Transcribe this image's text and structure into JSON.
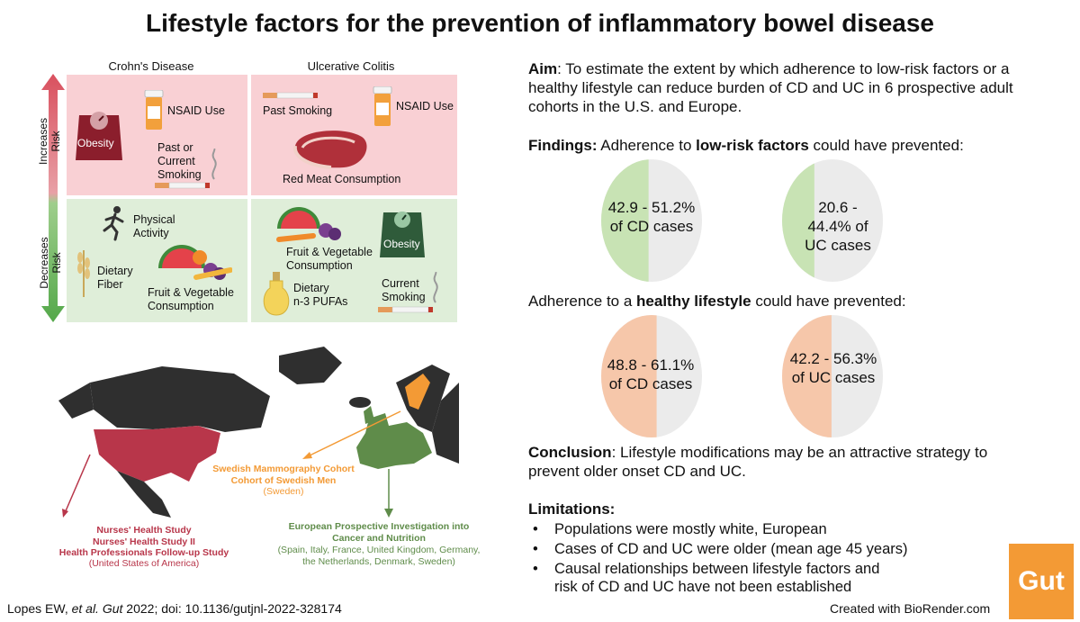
{
  "title": "Lifestyle factors for the prevention of inflammatory bowel disease",
  "matrix": {
    "col_headers": [
      "Crohn's Disease",
      "Ulcerative Colitis"
    ],
    "row_headers": [
      "Increases Risk",
      "Decreases Risk"
    ],
    "cd_increase": {
      "obesity": "Obesity",
      "nsaid": "NSAID Use",
      "smoking": "Past or\nCurrent\nSmoking"
    },
    "uc_increase": {
      "past_smoking": "Past Smoking",
      "nsaid": "NSAID Use",
      "red_meat": "Red Meat Consumption"
    },
    "cd_decrease": {
      "physical": "Physical\nActivity",
      "fiber": "Dietary\nFiber",
      "fruit": "Fruit & Vegetable\nConsumption"
    },
    "uc_decrease": {
      "fruit": "Fruit & Vegetable\nConsumption",
      "obesity": "Obesity",
      "pufa": "Dietary\nn-3 PUFAs",
      "smoking": "Current\nSmoking"
    }
  },
  "map": {
    "us_studies": "Nurses' Health Study\nNurses' Health Study II\nHealth Professionals Follow-up Study",
    "us_country": "(United States of America)",
    "swe_studies": "Swedish Mammography Cohort\nCohort of Swedish Men",
    "swe_country": "(Sweden)",
    "epic_study": "European Prospective Investigation into\nCancer and Nutrition",
    "epic_countries": "(Spain, Italy, France, United Kingdom, Germany,\nthe Netherlands, Denmark, Sweden)"
  },
  "aim": {
    "label": "Aim",
    "text": ": To estimate the extent by which adherence to low-risk factors or a healthy lifestyle can reduce burden of CD and UC in 6 prospective adult cohorts in the U.S. and Europe."
  },
  "findings": {
    "label": "Findings:",
    "pre": " Adherence to ",
    "bold": "low-risk factors",
    "post": " could have prevented:"
  },
  "healthy": {
    "pre": "Adherence to a ",
    "bold": "healthy lifestyle",
    "post": " could have prevented:"
  },
  "ovals": [
    {
      "text": "42.9 - 51.2%\nof CD cases",
      "fraction": 0.47,
      "color": "#c8e3b4"
    },
    {
      "text": "20.6 -\n44.4% of\nUC cases",
      "fraction": 0.32,
      "color": "#c8e3b4"
    },
    {
      "text": "48.8 - 61.1%\nof CD cases",
      "fraction": 0.55,
      "color": "#f6c7aa"
    },
    {
      "text": "42.2 - 56.3%\nof UC cases",
      "fraction": 0.49,
      "color": "#f6c7aa"
    }
  ],
  "conclusion": {
    "label": "Conclusion",
    "text": ": Lifestyle modifications may be an attractive strategy to prevent older onset CD and UC."
  },
  "limitations": {
    "label": "Limitations:",
    "items": [
      "Populations were mostly white, European",
      "Cases of CD and UC were older (mean age 45 years)",
      "Causal relationships between lifestyle factors and\nrisk of CD and UC have not been established"
    ]
  },
  "citation": {
    "pre": "Lopes EW, ",
    "etal": "et al. Gut",
    "post": " 2022; doi: 10.1136/gutjnl-2022-328174"
  },
  "created": "Created with BioRender.com",
  "logo": "Gut",
  "colors": {
    "increase": "#f9d0d4",
    "decrease": "#dfeed9",
    "accent": "#b8364a",
    "green": "#5f8c4a",
    "orange": "#f39a35",
    "gut": "#f39a35"
  }
}
